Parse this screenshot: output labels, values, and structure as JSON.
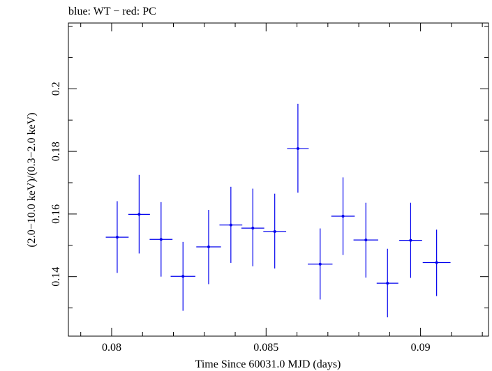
{
  "chart_data": {
    "type": "scatter",
    "title": "blue: WT − red: PC",
    "xlabel": "Time Since 60031.0 MJD (days)",
    "ylabel": "(2.0−10.0 keV)/(0.3−2.0 keV)",
    "xlim": [
      0.0786,
      0.0922
    ],
    "ylim": [
      0.121,
      0.221
    ],
    "x_ticks": [
      0.08,
      0.085,
      0.09
    ],
    "x_tick_labels": [
      "0.08",
      "0.085",
      "0.09"
    ],
    "y_ticks": [
      0.14,
      0.16,
      0.18,
      0.2
    ],
    "y_tick_labels": [
      "0.14",
      "0.16",
      "0.18",
      "0.2"
    ],
    "grid": false,
    "series": [
      {
        "color": "#0000ee",
        "points": [
          {
            "x": 0.08018,
            "xerr": 0.00037,
            "y": 0.1526,
            "yerr_lo": 0.0114,
            "yerr_hi": 0.0115
          },
          {
            "x": 0.08089,
            "xerr": 0.00035,
            "y": 0.1599,
            "yerr_lo": 0.0125,
            "yerr_hi": 0.0126
          },
          {
            "x": 0.0816,
            "xerr": 0.00037,
            "y": 0.1519,
            "yerr_lo": 0.0119,
            "yerr_hi": 0.0119
          },
          {
            "x": 0.08231,
            "xerr": 0.0004,
            "y": 0.1401,
            "yerr_lo": 0.011,
            "yerr_hi": 0.011
          },
          {
            "x": 0.08314,
            "xerr": 0.0004,
            "y": 0.1495,
            "yerr_lo": 0.0119,
            "yerr_hi": 0.0118
          },
          {
            "x": 0.08386,
            "xerr": 0.00037,
            "y": 0.1565,
            "yerr_lo": 0.0121,
            "yerr_hi": 0.0122
          },
          {
            "x": 0.08457,
            "xerr": 0.00037,
            "y": 0.1555,
            "yerr_lo": 0.0122,
            "yerr_hi": 0.0126
          },
          {
            "x": 0.08528,
            "xerr": 0.00037,
            "y": 0.1544,
            "yerr_lo": 0.0118,
            "yerr_hi": 0.0121
          },
          {
            "x": 0.08603,
            "xerr": 0.00035,
            "y": 0.1809,
            "yerr_lo": 0.0141,
            "yerr_hi": 0.0143
          },
          {
            "x": 0.08675,
            "xerr": 0.0004,
            "y": 0.144,
            "yerr_lo": 0.0113,
            "yerr_hi": 0.0114
          },
          {
            "x": 0.08749,
            "xerr": 0.00038,
            "y": 0.1593,
            "yerr_lo": 0.0124,
            "yerr_hi": 0.0124
          },
          {
            "x": 0.08823,
            "xerr": 0.0004,
            "y": 0.1517,
            "yerr_lo": 0.012,
            "yerr_hi": 0.0119
          },
          {
            "x": 0.08893,
            "xerr": 0.00035,
            "y": 0.1379,
            "yerr_lo": 0.0109,
            "yerr_hi": 0.011
          },
          {
            "x": 0.08968,
            "xerr": 0.00037,
            "y": 0.1516,
            "yerr_lo": 0.012,
            "yerr_hi": 0.012
          },
          {
            "x": 0.09052,
            "xerr": 0.00045,
            "y": 0.1445,
            "yerr_lo": 0.0107,
            "yerr_hi": 0.0105
          }
        ]
      }
    ]
  }
}
